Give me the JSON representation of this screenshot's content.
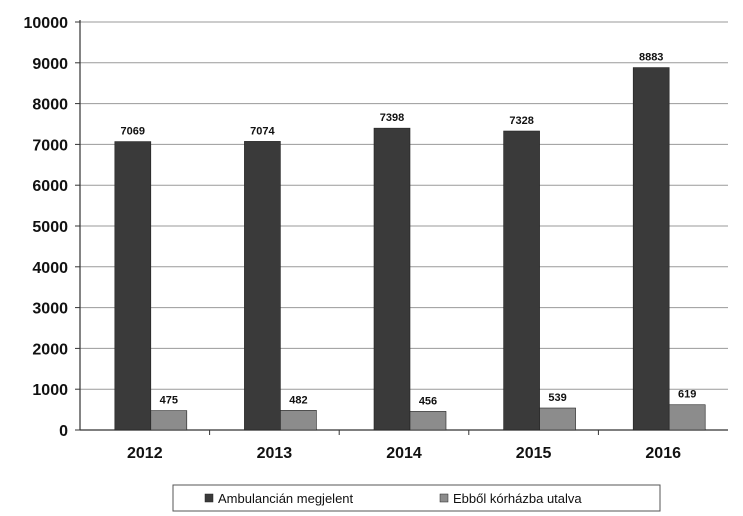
{
  "chart_data": {
    "type": "bar",
    "categories": [
      "2012",
      "2013",
      "2014",
      "2015",
      "2016"
    ],
    "series": [
      {
        "name": "Ambulancián megjelent",
        "values": [
          7069,
          7074,
          7398,
          7328,
          8883
        ],
        "color": "#3a3a3a"
      },
      {
        "name": "Ebből kórházba utalva",
        "values": [
          475,
          482,
          456,
          539,
          619
        ],
        "color": "#8c8c8c"
      }
    ],
    "title": "",
    "xlabel": "",
    "ylabel": "",
    "ylim": [
      0,
      10000
    ],
    "yticks": [
      "0",
      "1000",
      "2000",
      "3000",
      "4000",
      "5000",
      "6000",
      "7000",
      "8000",
      "9000",
      "10000"
    ],
    "grid": true,
    "legend_position": "bottom"
  }
}
